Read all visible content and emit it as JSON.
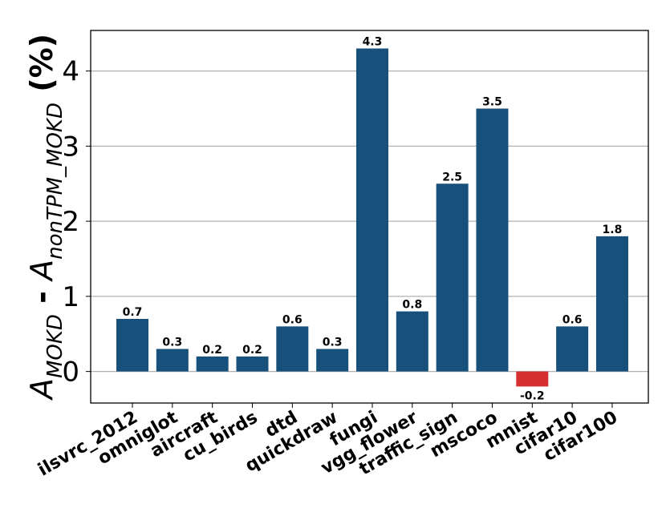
{
  "chart_data": {
    "type": "bar",
    "ylabel": [
      {
        "text": "A",
        "italic": true
      },
      {
        "text": "MOKD",
        "italic": true,
        "sub": true
      },
      {
        "text": " - ",
        "bold": true
      },
      {
        "text": "A",
        "italic": true
      },
      {
        "text": "nonTPM_MOKD",
        "italic": true,
        "sub": true
      },
      {
        "text": " (%)",
        "bold": true
      }
    ],
    "categories": [
      "ilsvrc_2012",
      "omniglot",
      "aircraft",
      "cu_birds",
      "dtd",
      "quickdraw",
      "fungi",
      "vgg_flower",
      "traffic_sign",
      "mscoco",
      "mnist",
      "cifar10",
      "cifar100"
    ],
    "values": [
      0.7,
      0.3,
      0.2,
      0.2,
      0.6,
      0.3,
      4.3,
      0.8,
      2.5,
      3.5,
      -0.2,
      0.6,
      1.8
    ],
    "color": "#17507a",
    "negative_color": "#d62f2f",
    "ylim": [
      -0.42,
      4.54
    ],
    "yticks": [
      0,
      1,
      2,
      3,
      4
    ],
    "grid": true
  }
}
